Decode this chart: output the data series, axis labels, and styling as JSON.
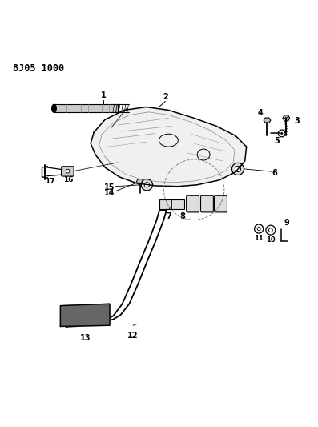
{
  "title": "8J05 1000",
  "bg_color": "#ffffff",
  "line_color": "#000000",
  "figsize": [
    3.97,
    5.33
  ],
  "dpi": 100
}
